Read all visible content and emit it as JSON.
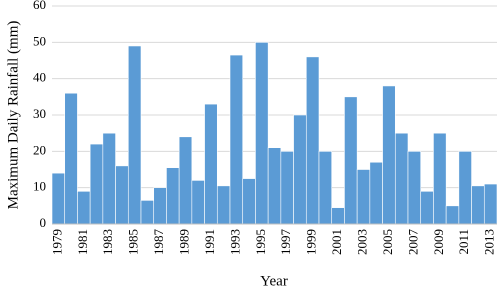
{
  "chart_data": {
    "type": "bar",
    "y_label": "Maximum Daily Rainfall (mm)",
    "x_label": "Year",
    "categories": [
      "1979",
      null,
      "1981",
      null,
      "1983",
      null,
      "1985",
      null,
      "1987",
      null,
      "1989",
      null,
      "1991",
      null,
      "1993",
      null,
      "1995",
      null,
      "1997",
      null,
      "1999",
      null,
      "2001",
      null,
      "2003",
      null,
      "2005",
      null,
      "2007",
      null,
      "2009",
      null,
      "2011",
      null,
      "2013"
    ],
    "values": [
      14,
      36,
      9,
      22,
      25,
      16,
      49,
      6.5,
      10,
      15.5,
      24,
      12,
      33,
      10.5,
      46.5,
      12.5,
      50,
      21,
      20,
      30,
      46,
      20,
      4.5,
      35,
      15,
      17,
      38,
      25,
      20,
      9,
      25,
      5,
      20,
      10.5,
      11
    ],
    "color": "#5b9bd5",
    "ylim": [
      0,
      60
    ],
    "yticks": [
      0,
      10,
      20,
      30,
      40,
      50,
      60
    ],
    "grid": true
  }
}
